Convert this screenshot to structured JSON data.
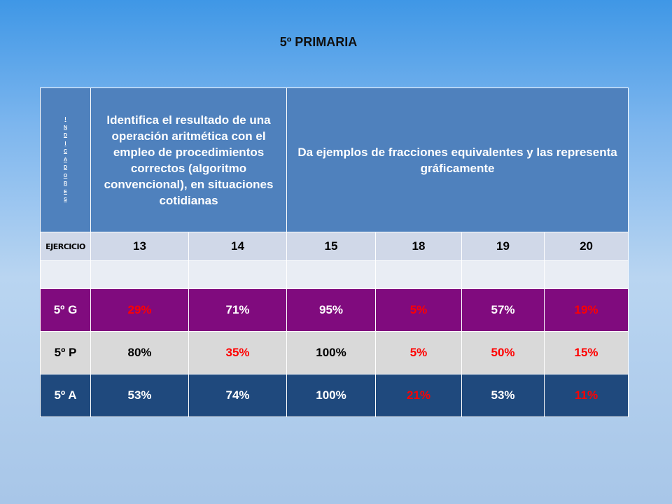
{
  "title": "5º PRIMARIA",
  "table": {
    "indicator_letters": [
      "I",
      "N",
      "D",
      "I",
      "C",
      "A",
      "D",
      "O",
      "R",
      "E",
      "S"
    ],
    "indicator_1": "Identifica el resultado de una operación aritmética con el empleo de procedimientos correctos (algoritmo convencional), en situaciones cotidianas",
    "indicator_2": "Da ejemplos de fracciones equivalentes y las representa gráficamente",
    "exercise_label": "EJERCICIO",
    "exercises": [
      "13",
      "14",
      "15",
      "18",
      "19",
      "20"
    ],
    "rows": [
      {
        "label": "5º G",
        "values": [
          "29%",
          "71%",
          "95%",
          "5%",
          "57%",
          "19%"
        ]
      },
      {
        "label": "5º P",
        "values": [
          "80%",
          "35%",
          "100%",
          "5%",
          "50%",
          "15%"
        ]
      },
      {
        "label": "5º A",
        "values": [
          "53%",
          "74%",
          "100%",
          "21%",
          "53%",
          "11%"
        ]
      }
    ],
    "highlight_color": "#ff0000"
  }
}
